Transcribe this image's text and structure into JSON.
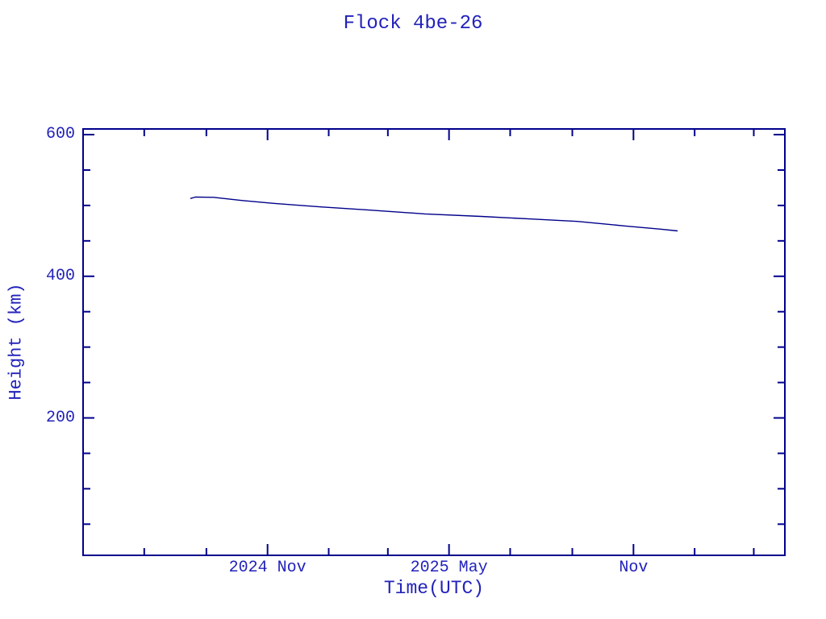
{
  "colors": {
    "background": "#ffffff",
    "text": "#2222bb",
    "axis": "#00008b",
    "line": "#00008b"
  },
  "chart_data": {
    "type": "line",
    "title": "Flock 4be-26",
    "xlabel": "Time(UTC)",
    "ylabel": "Height (km)",
    "x_range": [
      "2024-05-01",
      "2026-04-01"
    ],
    "y_range": [
      6,
      608
    ],
    "x_major_ticks": [
      {
        "date": "2024-11-01",
        "label": "2024 Nov"
      },
      {
        "date": "2025-05-01",
        "label": "2025 May"
      },
      {
        "date": "2025-11-01",
        "label": "Nov"
      }
    ],
    "x_minor_ticks": [
      "2024-07-01",
      "2024-09-01",
      "2025-01-01",
      "2025-03-01",
      "2025-07-01",
      "2025-09-01",
      "2026-01-01",
      "2026-03-01"
    ],
    "y_major_ticks": [
      {
        "value": 200,
        "label": "200"
      },
      {
        "value": 400,
        "label": "400"
      },
      {
        "value": 600,
        "label": "600"
      }
    ],
    "y_minor_ticks": [
      50,
      100,
      150,
      250,
      300,
      350,
      450,
      500,
      550
    ],
    "grid": false,
    "legend": false,
    "series": [
      {
        "name": "orbit-height",
        "color": "#00008b",
        "points": [
          [
            "2024-08-16",
            509.8
          ],
          [
            "2024-08-21",
            511.8
          ],
          [
            "2024-09-08",
            511.5
          ],
          [
            "2024-10-07",
            507.0
          ],
          [
            "2024-11-07",
            503.0
          ],
          [
            "2024-12-24",
            498.0
          ],
          [
            "2025-02-10",
            493.5
          ],
          [
            "2025-04-07",
            488.0
          ],
          [
            "2025-06-02",
            484.5
          ],
          [
            "2025-07-20",
            481.0
          ],
          [
            "2025-09-06",
            477.5
          ],
          [
            "2025-10-24",
            471.0
          ],
          [
            "2025-11-28",
            466.5
          ],
          [
            "2025-12-15",
            464.0
          ]
        ]
      }
    ]
  }
}
